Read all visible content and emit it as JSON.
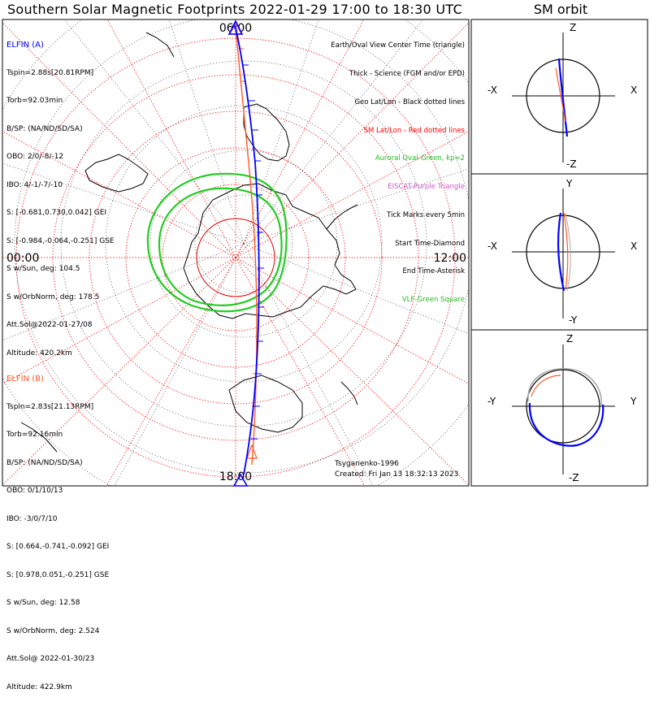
{
  "title": "Southern Solar Magnetic Footprints 2022-01-29 17:00 to 18:30 UTC",
  "orbit_title": "SM orbit",
  "map": {
    "mlt_labels": {
      "top": "06:00",
      "left": "00:00",
      "right": "12:00",
      "bottom": "18:00"
    },
    "colors": {
      "elfin_a": "#0000ff",
      "elfin_b": "#ff5a28",
      "aurora": "#22cc22",
      "geo_grid": "#000000",
      "sm_grid": "#ff0000"
    }
  },
  "elfin_a": {
    "name": "ELFIN (A)",
    "lines": [
      "Tspin=2.88s[20.81RPM]",
      "Torb=92.03min",
      "B/SP: (NA/ND/SD/SA)",
      "OBO: 2/0/-8/-12",
      "IBO: 4/-1/-7/-10",
      "S: [-0.681,0.730,0.042] GEI",
      "S: [-0.984,-0.064,-0.251] GSE",
      "S w/Sun, deg: 104.5",
      "S w/OrbNorm, deg: 178.5",
      "Att.Sol@2022-01-27/08",
      "Altitude: 420.2km"
    ]
  },
  "elfin_b": {
    "name": "ELFIN (B)",
    "lines": [
      "Tspin=2.83s[21.13RPM]",
      "Torb=92.16min",
      "B/SP: (NA/ND/SD/SA)",
      "OBO: 0/1/10/13",
      "IBO: -3/0/7/10",
      "S: [0.664,-0.741,-0.092] GEI",
      "S: [0.978,0.051,-0.251] GSE",
      "S w/Sun, deg: 12.58",
      "S w/OrbNorm, deg: 2.524",
      "Att.Sol@ 2022-01-30/23",
      "Altitude: 422.9km"
    ]
  },
  "legend": [
    {
      "text": "Earth/Oval View Center Time (triangle)",
      "color": "#000000"
    },
    {
      "text": "Thick - Science (FGM and/or EPD)",
      "color": "#000000"
    },
    {
      "text": "Geo Lat/Lon - Black dotted lines",
      "color": "#000000"
    },
    {
      "text": "SM Lat/Lon - Red dotted lines",
      "color": "#ff0000"
    },
    {
      "text": "Auroral Oval-Green, kp=2",
      "color": "#22bb22"
    },
    {
      "text": "EISCAT-Purple Triangle",
      "color": "#cc55cc"
    },
    {
      "text": "Tick Marks every 5min",
      "color": "#000000"
    },
    {
      "text": "Start Time-Diamond",
      "color": "#000000"
    },
    {
      "text": "End Time-Asterisk",
      "color": "#000000"
    },
    {
      "text": "VLF-Green Square",
      "color": "#22bb22"
    }
  ],
  "footer": {
    "model": "Tsyganenko-1996",
    "created": "Created: Fri Jan 13 18:32:13 2023"
  },
  "orbit_panels": [
    {
      "top": "Z",
      "bottom": "-Z",
      "left": "-X",
      "right": "X"
    },
    {
      "top": "Y",
      "bottom": "-Y",
      "left": "-X",
      "right": "X"
    },
    {
      "top": "Z",
      "bottom": "-Z",
      "left": "-Y",
      "right": "Y"
    }
  ]
}
